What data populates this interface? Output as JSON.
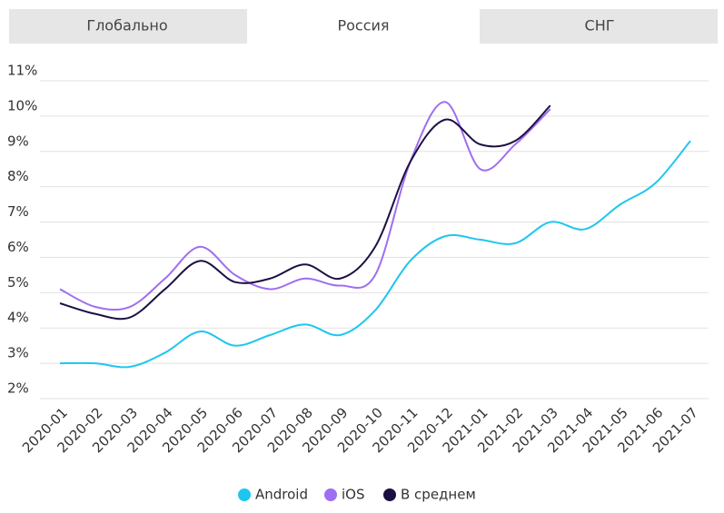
{
  "tabs": [
    "Глобально",
    "Россия",
    "СНГ"
  ],
  "active_tab": 1,
  "chart_data": {
    "type": "line",
    "categories": [
      "2020-01",
      "2020-02",
      "2020-03",
      "2020-04",
      "2020-05",
      "2020-06",
      "2020-07",
      "2020-08",
      "2020-09",
      "2020-10",
      "2020-11",
      "2020-12",
      "2021-01",
      "2021-02",
      "2021-03",
      "2021-04",
      "2021-05",
      "2021-06",
      "2021-07"
    ],
    "series": [
      {
        "name": "Android",
        "color": "#1ec6ef",
        "values": [
          3.0,
          3.0,
          2.9,
          3.3,
          3.9,
          3.5,
          3.8,
          4.1,
          3.8,
          4.5,
          5.9,
          6.6,
          6.5,
          6.4,
          7.0,
          6.8,
          7.5,
          8.1,
          9.3
        ]
      },
      {
        "name": "iOS",
        "color": "#9d6ff2",
        "values": [
          5.1,
          4.6,
          4.6,
          5.4,
          6.3,
          5.5,
          5.1,
          5.4,
          5.2,
          5.5,
          8.7,
          10.4,
          8.5,
          9.2,
          10.2,
          null,
          null,
          null,
          null
        ]
      },
      {
        "name": "В среднем",
        "color": "#1c1042",
        "values": [
          4.7,
          4.4,
          4.3,
          5.1,
          5.9,
          5.3,
          5.4,
          5.8,
          5.4,
          6.3,
          8.7,
          9.9,
          9.2,
          9.3,
          10.3,
          null,
          null,
          null,
          null
        ]
      }
    ],
    "ylim": [
      2,
      11
    ],
    "yticks": [
      {
        "value": 2,
        "label": "2%"
      },
      {
        "value": 3,
        "label": "3%"
      },
      {
        "value": 4,
        "label": "4%"
      },
      {
        "value": 5,
        "label": "5%"
      },
      {
        "value": 6,
        "label": "6%"
      },
      {
        "value": 7,
        "label": "7%"
      },
      {
        "value": 8,
        "label": "8%"
      },
      {
        "value": 9,
        "label": "9%"
      },
      {
        "value": 10,
        "label": "10%"
      },
      {
        "value": 11,
        "label": "11%"
      }
    ],
    "grid": true,
    "legend": "bottom"
  }
}
